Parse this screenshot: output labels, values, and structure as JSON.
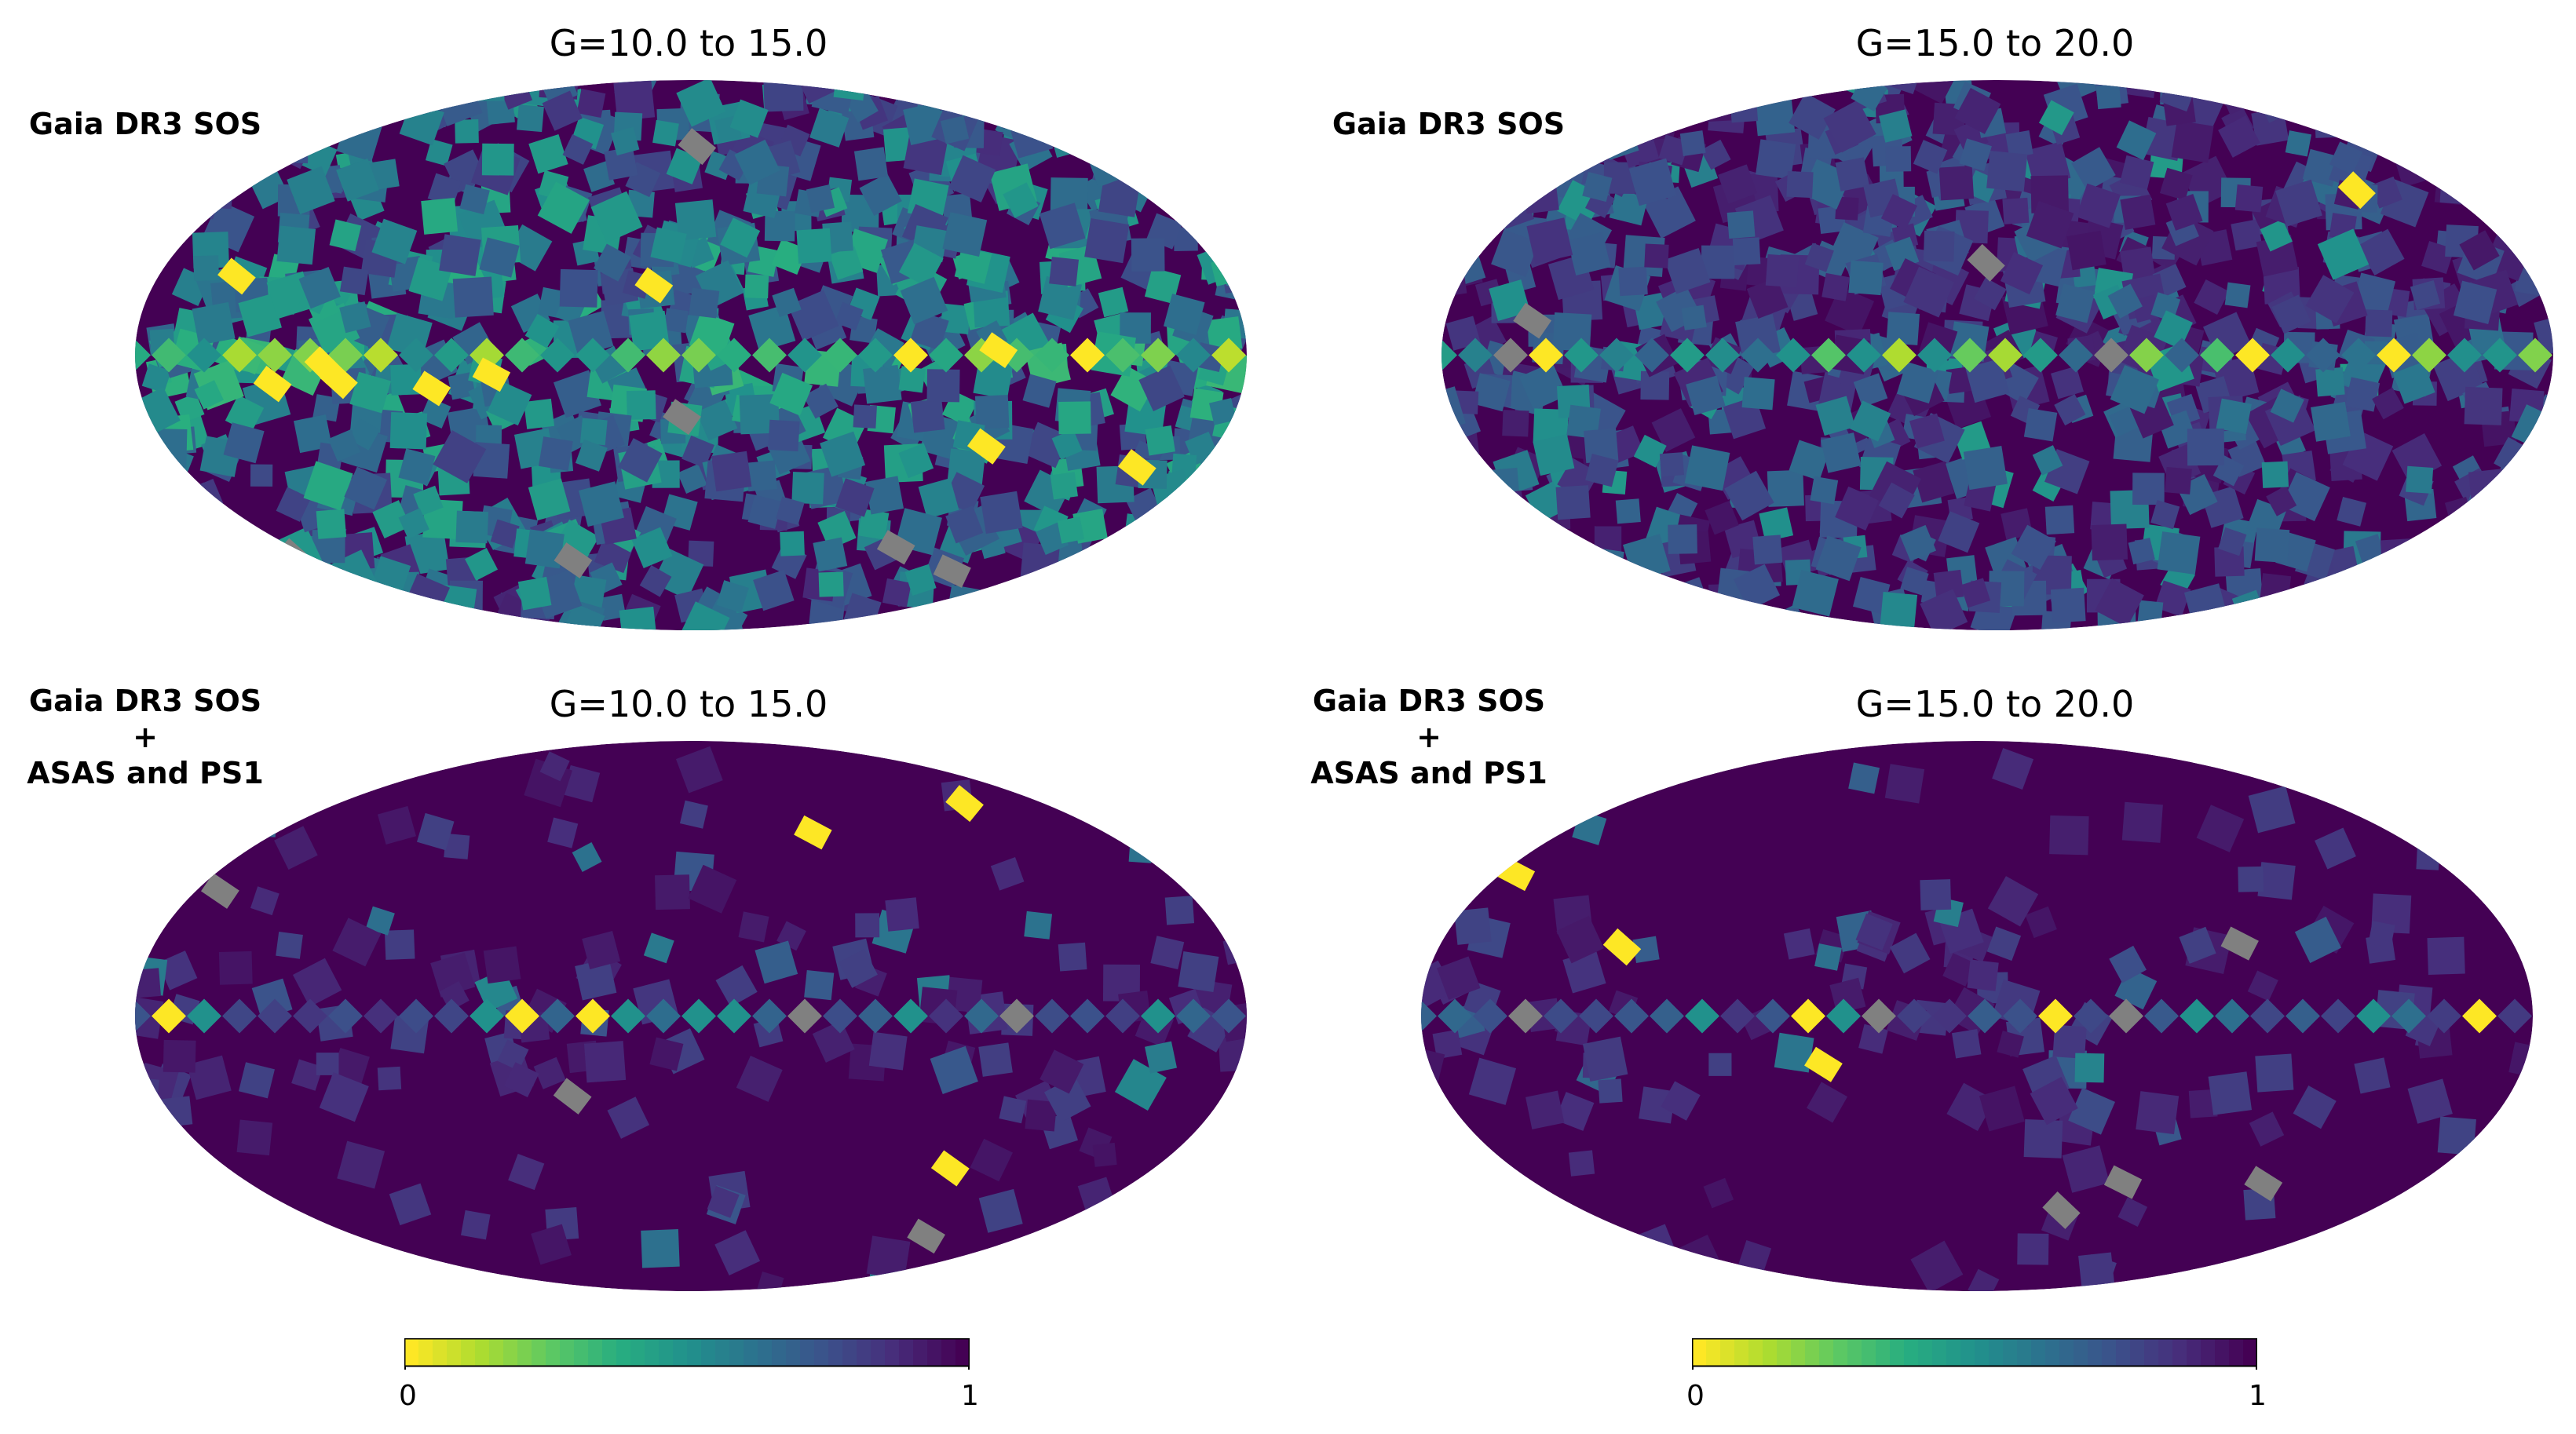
{
  "chart_data": [
    {
      "type": "heatmap",
      "projection": "mollweide",
      "title": "G=10.0 to 15.0",
      "row_label": [
        "Gaia DR3 SOS"
      ],
      "pattern": "dense_bright"
    },
    {
      "type": "heatmap",
      "projection": "mollweide",
      "title": "G=15.0 to 20.0",
      "row_label": [
        "Gaia DR3 SOS"
      ],
      "pattern": "faint_bright"
    },
    {
      "type": "heatmap",
      "projection": "mollweide",
      "title": "G=10.0 to 15.0",
      "row_label": [
        "Gaia DR3 SOS",
        "+",
        "ASAS and PS1"
      ],
      "pattern": "dense_sparse"
    },
    {
      "type": "heatmap",
      "projection": "mollweide",
      "title": "G=15.0 to 20.0",
      "row_label": [
        "Gaia DR3 SOS",
        "+",
        "ASAS and PS1"
      ],
      "pattern": "faint_sparse"
    }
  ],
  "colorbars": [
    {
      "min_label": "0",
      "max_label": "1",
      "range": [
        0,
        1
      ],
      "colormap": "viridis_r"
    },
    {
      "min_label": "0",
      "max_label": "1",
      "range": [
        0,
        1
      ],
      "colormap": "viridis_r"
    }
  ],
  "colors": {
    "missing": "#808080",
    "viridis": [
      "#440154",
      "#472d7b",
      "#3b528b",
      "#2c728e",
      "#21918c",
      "#28ae80",
      "#5ec962",
      "#addc30",
      "#fde725"
    ]
  }
}
